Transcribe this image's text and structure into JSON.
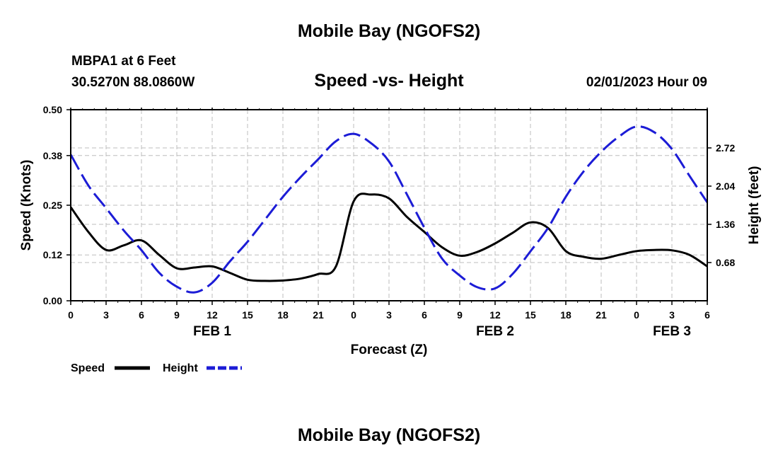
{
  "header": {
    "title": "Mobile Bay (NGOFS2)",
    "station": "MBPA1 at 6 Feet",
    "coordinates": "30.5270N  88.0860W",
    "timestamp": "02/01/2023 Hour 09"
  },
  "footer": {
    "title": "Mobile Bay (NGOFS2)"
  },
  "chart_data": {
    "type": "line",
    "title": "Speed -vs- Height",
    "xlabel": "Forecast (Z)",
    "ylabel": "Speed (Knots)",
    "ylabel_right": "Height (feet)",
    "x_range": [
      0,
      54
    ],
    "x_ticks": [
      0,
      3,
      6,
      9,
      12,
      15,
      18,
      21,
      24,
      27,
      30,
      33,
      36,
      39,
      42,
      45,
      48,
      51,
      54
    ],
    "x_tick_labels": [
      "0",
      "3",
      "6",
      "9",
      "12",
      "15",
      "18",
      "21",
      "0",
      "3",
      "6",
      "9",
      "12",
      "15",
      "18",
      "21",
      "0",
      "3",
      "6"
    ],
    "date_labels": [
      {
        "x": 12,
        "label": "FEB 1"
      },
      {
        "x": 36,
        "label": "FEB 2"
      },
      {
        "x": 51,
        "label": "FEB 3"
      }
    ],
    "ylim": [
      0,
      0.5
    ],
    "y_ticks": [
      0,
      0.12,
      0.25,
      0.38,
      0.5
    ],
    "y_tick_labels": [
      "0.00",
      "0.12",
      "0.25",
      "0.38",
      "0.50"
    ],
    "ylim_right": [
      0,
      3.4
    ],
    "y_ticks_right": [
      0.68,
      1.36,
      2.04,
      2.72
    ],
    "y_tick_labels_right": [
      "0.68",
      "1.36",
      "2.04",
      "2.72"
    ],
    "grid": true,
    "legend_position": "bottom-left",
    "series": [
      {
        "name": "Speed",
        "axis": "left",
        "color": "#000000",
        "style": "solid",
        "x": [
          0,
          1.5,
          3,
          4.5,
          6,
          7.5,
          9,
          10.5,
          12,
          13.5,
          15,
          16.5,
          18,
          19.5,
          21,
          22.5,
          24,
          25.5,
          27,
          28.5,
          30,
          31.5,
          33,
          34.5,
          36,
          37.5,
          39,
          40.5,
          42,
          43.5,
          45,
          46.5,
          48,
          49.5,
          51,
          52.5,
          54
        ],
        "values": [
          0.245,
          0.18,
          0.133,
          0.145,
          0.158,
          0.12,
          0.085,
          0.087,
          0.09,
          0.073,
          0.055,
          0.052,
          0.053,
          0.058,
          0.07,
          0.09,
          0.26,
          0.278,
          0.268,
          0.22,
          0.18,
          0.14,
          0.118,
          0.128,
          0.15,
          0.178,
          0.205,
          0.19,
          0.13,
          0.115,
          0.11,
          0.12,
          0.13,
          0.133,
          0.132,
          0.12,
          0.09
        ]
      },
      {
        "name": "Height",
        "axis": "right",
        "color": "#1c1cd6",
        "style": "dashed",
        "x": [
          0,
          1.5,
          3,
          4.5,
          6,
          7.5,
          9,
          10.5,
          12,
          13.5,
          15,
          16.5,
          18,
          19.5,
          21,
          22.5,
          24,
          25.5,
          27,
          28.5,
          30,
          31.5,
          33,
          34.5,
          36,
          37.5,
          39,
          40.5,
          42,
          43.5,
          45,
          46.5,
          48,
          49.5,
          51,
          52.5,
          54
        ],
        "values": [
          2.6,
          2.05,
          1.65,
          1.25,
          0.9,
          0.5,
          0.25,
          0.15,
          0.32,
          0.7,
          1.05,
          1.45,
          1.85,
          2.2,
          2.52,
          2.84,
          2.97,
          2.8,
          2.48,
          1.9,
          1.3,
          0.75,
          0.45,
          0.24,
          0.22,
          0.48,
          0.88,
          1.3,
          1.85,
          2.3,
          2.65,
          2.92,
          3.1,
          3.0,
          2.7,
          2.22,
          1.75
        ]
      }
    ]
  }
}
